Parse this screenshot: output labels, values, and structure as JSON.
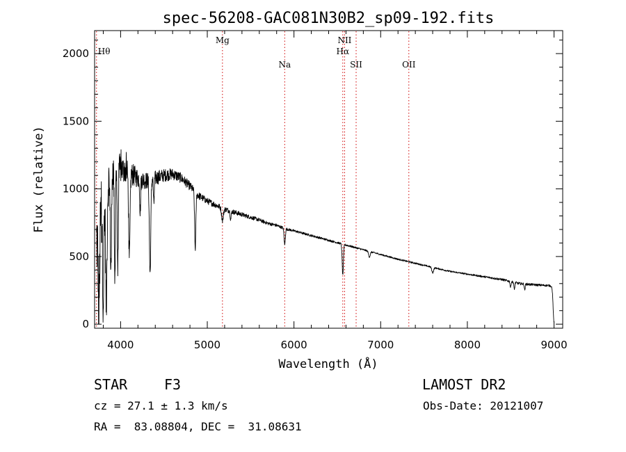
{
  "chart_data": {
    "type": "line",
    "title": "spec-56208-GAC081N30B2_sp09-192.fits",
    "xlabel": "Wavelength (Å)",
    "ylabel": "Flux (relative)",
    "xlim": [
      3700,
      9100
    ],
    "ylim": [
      -30,
      2170
    ],
    "x_ticks": [
      4000,
      5000,
      6000,
      7000,
      8000,
      9000
    ],
    "x_tick_labels": [
      "4000",
      "5000",
      "6000",
      "7000",
      "8000",
      "9000"
    ],
    "y_ticks": [
      0,
      500,
      1000,
      1500,
      2000
    ],
    "y_tick_labels": [
      "0",
      "500",
      "1000",
      "1500",
      "2000"
    ],
    "grid": false,
    "line_color": "#000000",
    "marker_color": "#d00000",
    "spectral_lines": [
      {
        "name": "Hθ",
        "wavelength": 3722,
        "label_level": "high"
      },
      {
        "name": "Mg",
        "wavelength": 5175,
        "label_level": "top"
      },
      {
        "name": "Na",
        "wavelength": 5893,
        "label_level": "low"
      },
      {
        "name": "NII",
        "wavelength": 6584,
        "label_level": "top"
      },
      {
        "name": "Hα",
        "wavelength": 6563,
        "label_level": "high"
      },
      {
        "name": "SII",
        "wavelength": 6717,
        "label_level": "low"
      },
      {
        "name": "OII",
        "wavelength": 7325,
        "label_level": "low"
      }
    ],
    "continuum": [
      [
        3720,
        600
      ],
      [
        3800,
        900
      ],
      [
        3900,
        1150
      ],
      [
        4000,
        1150
      ],
      [
        4100,
        1120
      ],
      [
        4200,
        1080
      ],
      [
        4300,
        1060
      ],
      [
        4400,
        1080
      ],
      [
        4500,
        1100
      ],
      [
        4600,
        1110
      ],
      [
        4700,
        1080
      ],
      [
        4800,
        1020
      ],
      [
        4900,
        950
      ],
      [
        5000,
        910
      ],
      [
        5100,
        880
      ],
      [
        5200,
        850
      ],
      [
        5300,
        830
      ],
      [
        5400,
        810
      ],
      [
        5500,
        790
      ],
      [
        5600,
        770
      ],
      [
        5700,
        745
      ],
      [
        5800,
        730
      ],
      [
        5900,
        705
      ],
      [
        6000,
        690
      ],
      [
        6200,
        655
      ],
      [
        6400,
        620
      ],
      [
        6600,
        585
      ],
      [
        6800,
        550
      ],
      [
        7000,
        515
      ],
      [
        7200,
        480
      ],
      [
        7400,
        450
      ],
      [
        7600,
        420
      ],
      [
        7800,
        390
      ],
      [
        8000,
        370
      ],
      [
        8200,
        350
      ],
      [
        8400,
        330
      ],
      [
        8600,
        300
      ],
      [
        8800,
        290
      ],
      [
        8950,
        285
      ],
      [
        9000,
        270
      ]
    ],
    "absorption_features": [
      {
        "center": 3750,
        "width": 8,
        "depth": 600
      },
      {
        "center": 3800,
        "width": 8,
        "depth": 700
      },
      {
        "center": 3835,
        "width": 8,
        "depth": 850
      },
      {
        "center": 3889,
        "width": 8,
        "depth": 700
      },
      {
        "center": 3934,
        "width": 6,
        "depth": 800
      },
      {
        "center": 3968,
        "width": 6,
        "depth": 750
      },
      {
        "center": 4101,
        "width": 8,
        "depth": 650
      },
      {
        "center": 4226,
        "width": 5,
        "depth": 250
      },
      {
        "center": 4340,
        "width": 8,
        "depth": 700
      },
      {
        "center": 4383,
        "width": 5,
        "depth": 200
      },
      {
        "center": 4861,
        "width": 7,
        "depth": 420
      },
      {
        "center": 5175,
        "width": 10,
        "depth": 90
      },
      {
        "center": 5270,
        "width": 6,
        "depth": 60
      },
      {
        "center": 5893,
        "width": 7,
        "depth": 120
      },
      {
        "center": 6563,
        "width": 7,
        "depth": 230
      },
      {
        "center": 6870,
        "width": 10,
        "depth": 40
      },
      {
        "center": 7600,
        "width": 10,
        "depth": 40
      },
      {
        "center": 8498,
        "width": 5,
        "depth": 45
      },
      {
        "center": 8542,
        "width": 5,
        "depth": 55
      },
      {
        "center": 8662,
        "width": 5,
        "depth": 45
      },
      {
        "center": 9000,
        "width": 10,
        "depth": 260
      }
    ],
    "noise_amplitude": [
      [
        3720,
        500
      ],
      [
        3800,
        350
      ],
      [
        3900,
        250
      ],
      [
        4000,
        180
      ],
      [
        4200,
        120
      ],
      [
        4500,
        80
      ],
      [
        4800,
        55
      ],
      [
        5000,
        40
      ],
      [
        5500,
        25
      ],
      [
        6000,
        15
      ],
      [
        7000,
        10
      ],
      [
        8000,
        10
      ],
      [
        8600,
        16
      ],
      [
        9000,
        12
      ]
    ]
  },
  "info": {
    "object_class": "STAR",
    "subclass": "F3",
    "redshift": "cz = 27.1 ± 1.3 km/s",
    "coords": "RA =  83.08804, DEC =  31.08631",
    "survey": "LAMOST DR2",
    "obs_date": "Obs-Date: 20121007"
  }
}
